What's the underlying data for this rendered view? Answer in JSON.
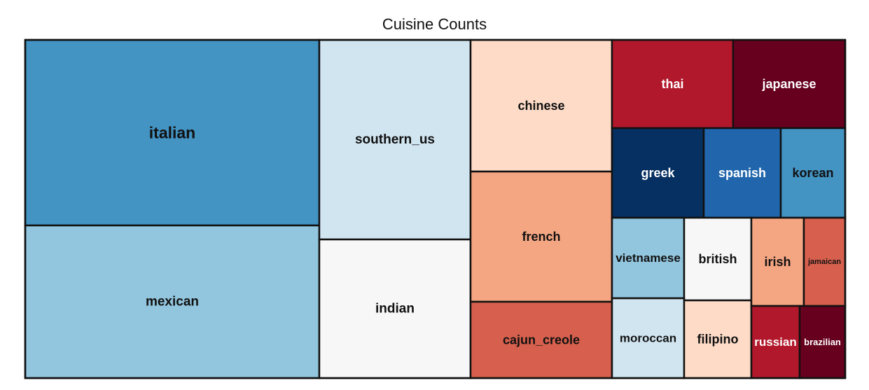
{
  "chart_data": {
    "type": "treemap",
    "title": "Cuisine Counts",
    "tiles": [
      {
        "name": "italian",
        "color": "#4393c3",
        "label_color": "#111111"
      },
      {
        "name": "mexican",
        "color": "#92c5de",
        "label_color": "#111111"
      },
      {
        "name": "southern_us",
        "color": "#d1e5f0",
        "label_color": "#111111"
      },
      {
        "name": "indian",
        "color": "#f7f7f7",
        "label_color": "#111111"
      },
      {
        "name": "chinese",
        "color": "#fddbc7",
        "label_color": "#111111"
      },
      {
        "name": "french",
        "color": "#f4a582",
        "label_color": "#111111"
      },
      {
        "name": "cajun_creole",
        "color": "#d6604d",
        "label_color": "#111111"
      },
      {
        "name": "thai",
        "color": "#b2182b",
        "label_color": "#ffffff"
      },
      {
        "name": "japanese",
        "color": "#67001f",
        "label_color": "#ffffff"
      },
      {
        "name": "greek",
        "color": "#053061",
        "label_color": "#ffffff"
      },
      {
        "name": "spanish",
        "color": "#2166ac",
        "label_color": "#ffffff"
      },
      {
        "name": "korean",
        "color": "#4393c3",
        "label_color": "#111111"
      },
      {
        "name": "vietnamese",
        "color": "#92c5de",
        "label_color": "#111111"
      },
      {
        "name": "british",
        "color": "#f7f7f7",
        "label_color": "#111111"
      },
      {
        "name": "moroccan",
        "color": "#d1e5f0",
        "label_color": "#111111"
      },
      {
        "name": "filipino",
        "color": "#fddbc7",
        "label_color": "#111111"
      },
      {
        "name": "irish",
        "color": "#f4a582",
        "label_color": "#111111"
      },
      {
        "name": "jamaican",
        "color": "#d6604d",
        "label_color": "#111111"
      },
      {
        "name": "russian",
        "color": "#b2182b",
        "label_color": "#ffffff"
      },
      {
        "name": "brazilian",
        "color": "#67001f",
        "label_color": "#ffffff"
      }
    ]
  }
}
